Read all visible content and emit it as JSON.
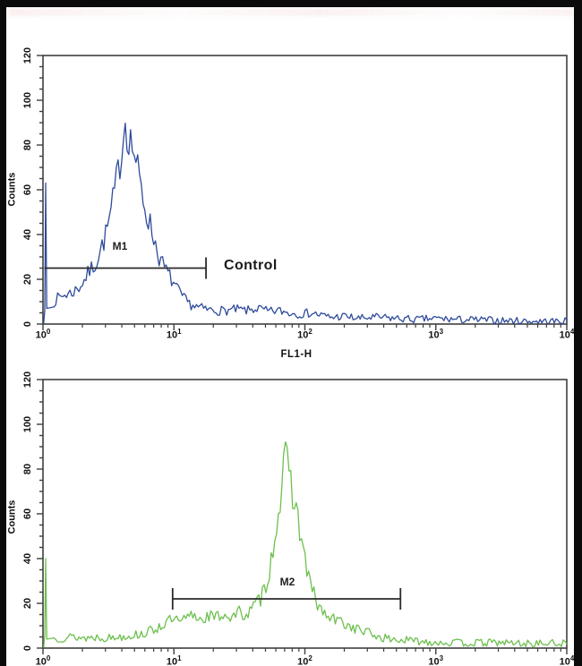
{
  "figure": {
    "background": "#ffffff",
    "frame_border_color": "#0b0b0b",
    "axis_color": "#3f3f3f",
    "gate_color": "#2a2a2a"
  },
  "chart_data": [
    {
      "type": "line",
      "subtype": "flow-cytometry-histogram",
      "panel": "top",
      "color": "#2e4b9b",
      "xlabel": "FL1-H",
      "ylabel": "Counts",
      "x_scale": "log10",
      "xlim_log": [
        0,
        4
      ],
      "ylim": [
        0,
        120
      ],
      "y_ticks": [
        0,
        20,
        40,
        60,
        80,
        100,
        120
      ],
      "x_ticks": {
        "base": "10",
        "exponents": [
          "0",
          "1",
          "2",
          "3",
          "4"
        ]
      },
      "grid": "off",
      "noise_seed": 7,
      "edge_spike_counts": 63,
      "profile_log_counts": [
        [
          0.03,
          7
        ],
        [
          0.1,
          11
        ],
        [
          0.16,
          13
        ],
        [
          0.22,
          14
        ],
        [
          0.27,
          16
        ],
        [
          0.32,
          20
        ],
        [
          0.36,
          24
        ],
        [
          0.4,
          27
        ],
        [
          0.44,
          33
        ],
        [
          0.48,
          40
        ],
        [
          0.52,
          50
        ],
        [
          0.55,
          60
        ],
        [
          0.58,
          70
        ],
        [
          0.6,
          78
        ],
        [
          0.62,
          88
        ],
        [
          0.63,
          92
        ],
        [
          0.645,
          86
        ],
        [
          0.66,
          83
        ],
        [
          0.68,
          80
        ],
        [
          0.7,
          76
        ],
        [
          0.73,
          66
        ],
        [
          0.76,
          57
        ],
        [
          0.79,
          50
        ],
        [
          0.82,
          44
        ],
        [
          0.85,
          38
        ],
        [
          0.88,
          31
        ],
        [
          0.91,
          27
        ],
        [
          0.94,
          24
        ],
        [
          0.97,
          21
        ],
        [
          1.0,
          18
        ],
        [
          1.04,
          14
        ],
        [
          1.08,
          11
        ],
        [
          1.12,
          9
        ],
        [
          1.18,
          7.5
        ],
        [
          1.25,
          6.5
        ],
        [
          1.32,
          6
        ],
        [
          1.4,
          6
        ],
        [
          1.48,
          6.5
        ],
        [
          1.56,
          6
        ],
        [
          1.64,
          7
        ],
        [
          1.72,
          5.5
        ],
        [
          1.8,
          6
        ],
        [
          1.88,
          5
        ],
        [
          1.96,
          4.5
        ],
        [
          2.05,
          5
        ],
        [
          2.12,
          4
        ],
        [
          2.2,
          3
        ],
        [
          2.3,
          3.5
        ],
        [
          2.4,
          2.5
        ],
        [
          2.55,
          3
        ],
        [
          2.7,
          2.5
        ],
        [
          2.85,
          2
        ],
        [
          3.0,
          2.5
        ],
        [
          3.15,
          2
        ],
        [
          3.35,
          1.8
        ],
        [
          3.55,
          1.5
        ],
        [
          3.75,
          1.2
        ],
        [
          4.0,
          1.2
        ]
      ],
      "marker": {
        "label": "M1",
        "from_log": 0.01,
        "to_log": 1.245,
        "counts": 25,
        "left_tick": false,
        "right_tick": true,
        "label_log": 0.59,
        "label_counts": 34
      },
      "annotation": {
        "text": "Control",
        "log": 1.39,
        "counts": 26
      }
    },
    {
      "type": "line",
      "subtype": "flow-cytometry-histogram",
      "panel": "bottom",
      "color": "#6cc04e",
      "xlabel": "",
      "ylabel": "Counts",
      "x_scale": "log10",
      "xlim_log": [
        0,
        4
      ],
      "ylim": [
        0,
        120
      ],
      "y_ticks": [
        0,
        20,
        40,
        60,
        80,
        100,
        120
      ],
      "x_ticks": {
        "base": "10",
        "exponents": [
          "0",
          "1",
          "2",
          "3",
          "4"
        ]
      },
      "grid": "off",
      "noise_seed": 13,
      "edge_spike_counts": 40,
      "profile_log_counts": [
        [
          0.03,
          4
        ],
        [
          0.12,
          4.5
        ],
        [
          0.22,
          5
        ],
        [
          0.32,
          4.5
        ],
        [
          0.42,
          5
        ],
        [
          0.52,
          4.5
        ],
        [
          0.62,
          5.5
        ],
        [
          0.72,
          6
        ],
        [
          0.8,
          7
        ],
        [
          0.87,
          9
        ],
        [
          0.93,
          11
        ],
        [
          1.0,
          13
        ],
        [
          1.05,
          11
        ],
        [
          1.1,
          13.5
        ],
        [
          1.15,
          15
        ],
        [
          1.2,
          13
        ],
        [
          1.26,
          14.5
        ],
        [
          1.32,
          13.5
        ],
        [
          1.38,
          15.5
        ],
        [
          1.44,
          13.5
        ],
        [
          1.5,
          16
        ],
        [
          1.56,
          15
        ],
        [
          1.62,
          19
        ],
        [
          1.66,
          22
        ],
        [
          1.7,
          28
        ],
        [
          1.74,
          38
        ],
        [
          1.77,
          50
        ],
        [
          1.8,
          63
        ],
        [
          1.83,
          75
        ],
        [
          1.855,
          84
        ],
        [
          1.87,
          80
        ],
        [
          1.89,
          74
        ],
        [
          1.91,
          70
        ],
        [
          1.94,
          60
        ],
        [
          1.97,
          50
        ],
        [
          2.0,
          40
        ],
        [
          2.03,
          31
        ],
        [
          2.06,
          25
        ],
        [
          2.1,
          19
        ],
        [
          2.15,
          15
        ],
        [
          2.2,
          13
        ],
        [
          2.27,
          12
        ],
        [
          2.33,
          10
        ],
        [
          2.4,
          8.5
        ],
        [
          2.48,
          7
        ],
        [
          2.56,
          5
        ],
        [
          2.65,
          4
        ],
        [
          2.75,
          3.5
        ],
        [
          2.9,
          3
        ],
        [
          3.05,
          2.5
        ],
        [
          3.25,
          2.2
        ],
        [
          3.5,
          2.5
        ],
        [
          3.7,
          2
        ],
        [
          4.0,
          2.2
        ]
      ],
      "marker": {
        "label": "M2",
        "from_log": 0.99,
        "to_log": 2.73,
        "counts": 22,
        "left_tick": true,
        "right_tick": true,
        "label_log": 1.867,
        "label_counts": 29
      },
      "annotation": null
    }
  ]
}
